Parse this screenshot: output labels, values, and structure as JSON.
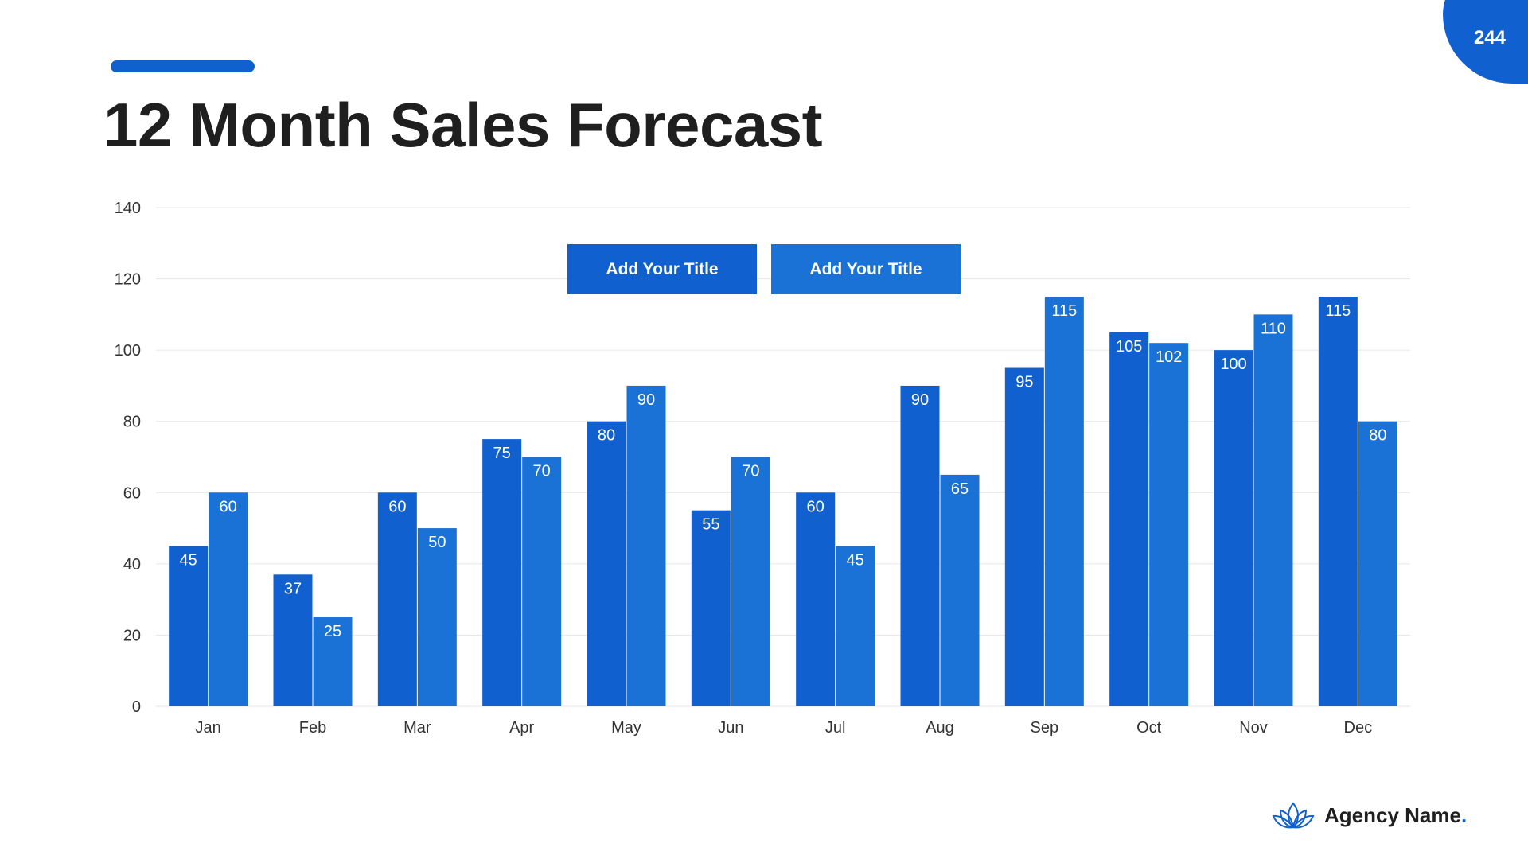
{
  "page": {
    "title": "12 Month Sales Forecast",
    "page_number": "244"
  },
  "colors": {
    "accent": "#1160d0",
    "series_1": "#1160d0",
    "series_2": "#1a72d6",
    "grid": "#e6e6e6",
    "text": "#1f1f1f"
  },
  "brand": {
    "name": "Agency Name",
    "dot": ".",
    "icon": "lotus-icon"
  },
  "chart_data": {
    "type": "bar",
    "categories": [
      "Jan",
      "Feb",
      "Mar",
      "Apr",
      "May",
      "Jun",
      "Jul",
      "Aug",
      "Sep",
      "Oct",
      "Nov",
      "Dec"
    ],
    "series": [
      {
        "name": "Add Your Title",
        "values": [
          45,
          37,
          60,
          75,
          80,
          55,
          60,
          90,
          95,
          105,
          100,
          115
        ]
      },
      {
        "name": "Add Your Title",
        "values": [
          60,
          25,
          50,
          70,
          90,
          70,
          45,
          65,
          115,
          102,
          110,
          80
        ]
      }
    ],
    "title": "",
    "xlabel": "",
    "ylabel": "",
    "ylim": [
      0,
      140
    ],
    "yticks": [
      0,
      20,
      40,
      60,
      80,
      100,
      120,
      140
    ],
    "grid": true,
    "legend_position": "top-center",
    "data_labels": true
  }
}
